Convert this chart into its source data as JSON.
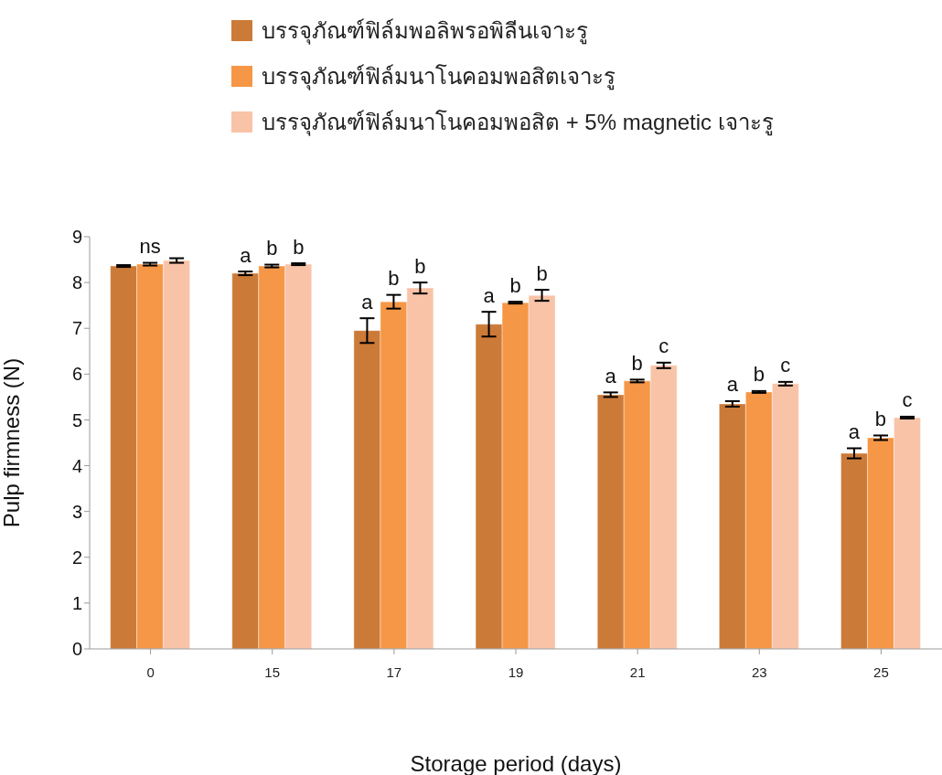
{
  "chart_data": {
    "type": "bar",
    "xlabel": "Storage period (days)",
    "ylabel": "Pulp firmness (N)",
    "categories": [
      "0",
      "15",
      "17",
      "19",
      "21",
      "23",
      "25"
    ],
    "series": [
      {
        "name": "บรรจุภัณฑ์ฟิล์มพอลิพรอพิลีนเจาะรู",
        "color": "#cc7a38",
        "values": [
          8.36,
          8.2,
          6.95,
          7.09,
          5.55,
          5.35,
          4.27
        ],
        "errors": [
          0.02,
          0.04,
          0.27,
          0.27,
          0.05,
          0.06,
          0.11
        ],
        "value_labels": [
          null,
          "a",
          "a",
          "a",
          "a",
          "a",
          "a"
        ]
      },
      {
        "name": "บรรจุภัณฑ์ฟิล์มนาโนคอมพอสิตเจาะรู",
        "color": "#f59746",
        "values": [
          8.4,
          8.36,
          7.58,
          7.56,
          5.85,
          5.61,
          4.61
        ],
        "errors": [
          0.03,
          0.03,
          0.15,
          0.02,
          0.03,
          0.02,
          0.05
        ],
        "value_labels": [
          "ns",
          "b",
          "b",
          "b",
          "b",
          "b",
          "b"
        ]
      },
      {
        "name": "บรรจุภัณฑ์ฟิล์มนาโนคอมพอสิต + 5% magnetic เจาะรู",
        "color": "#f9c3a8",
        "values": [
          8.48,
          8.4,
          7.88,
          7.72,
          6.19,
          5.79,
          5.05
        ],
        "errors": [
          0.05,
          0.02,
          0.12,
          0.12,
          0.06,
          0.04,
          0.02
        ],
        "value_labels": [
          null,
          "b",
          "b",
          "b",
          "c",
          "c",
          "c"
        ]
      }
    ],
    "ylim": [
      0,
      9
    ],
    "yticks": [
      0,
      1,
      2,
      3,
      4,
      5,
      6,
      7,
      8,
      9
    ],
    "grid": false,
    "legend": "top"
  }
}
